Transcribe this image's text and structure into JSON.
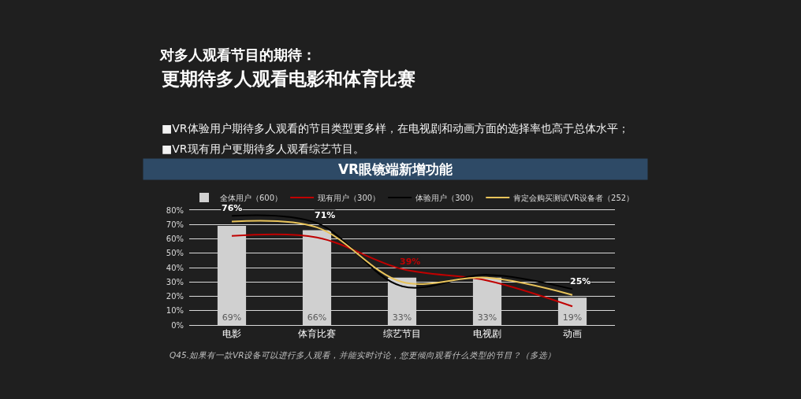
{
  "chart_data": {
    "type": "bar",
    "title": "对多人观看节目的期待：",
    "subtitle": "更期待多人观看电影和体育比赛",
    "annotations": [
      "■VR体验用户期待多人观看的节目类型更多样，在电视剧和动画方面的选择率也高于总体水平；",
      "■VR现有用户更期待多人观看综艺节目。",
      "VR眼镜端新增功能",
      "Q45.如果有一款VR设备可以进行多人观看，并能实时讨论，您更倾向观看什么类型的节目？（多选）"
    ],
    "categories": [
      "电影",
      "体育比赛",
      "综艺节目",
      "电视剧",
      "动画"
    ],
    "series": [
      {
        "name": "全体用户（600）",
        "color": "#d0d0d0",
        "values": [
          69,
          66,
          33,
          33,
          19
        ],
        "value_labels": [
          "69%",
          "66%",
          "33%",
          "33%",
          "19%"
        ]
      },
      {
        "name": "现有用户（300）",
        "type": "line",
        "color": "#c00000",
        "values": [
          62,
          61,
          39,
          31,
          13
        ],
        "value_labels": [
          null,
          null,
          "39%",
          null,
          null
        ]
      },
      {
        "name": "体验用户（300）",
        "type": "line",
        "color": "#000000",
        "values": [
          76,
          71,
          27,
          35,
          25
        ],
        "value_labels": [
          "76%",
          "71%",
          null,
          null,
          "25%"
        ]
      },
      {
        "name": "肯定会购买测试VR设备者（252）",
        "type": "line",
        "color": "#e8c35a",
        "values": [
          72,
          68,
          30,
          33,
          21
        ]
      }
    ],
    "ylim": [
      0,
      80
    ],
    "yticks": [
      {
        "value": 0,
        "label": "0%"
      },
      {
        "value": 10,
        "label": "10%"
      },
      {
        "value": 20,
        "label": "20%"
      },
      {
        "value": 30,
        "label": "30%"
      },
      {
        "value": 40,
        "label": "40%"
      },
      {
        "value": 50,
        "label": "50%"
      },
      {
        "value": 60,
        "label": "60%"
      },
      {
        "value": 70,
        "label": "70%"
      },
      {
        "value": 80,
        "label": "80%"
      }
    ],
    "grid": "y",
    "legend": "top"
  }
}
